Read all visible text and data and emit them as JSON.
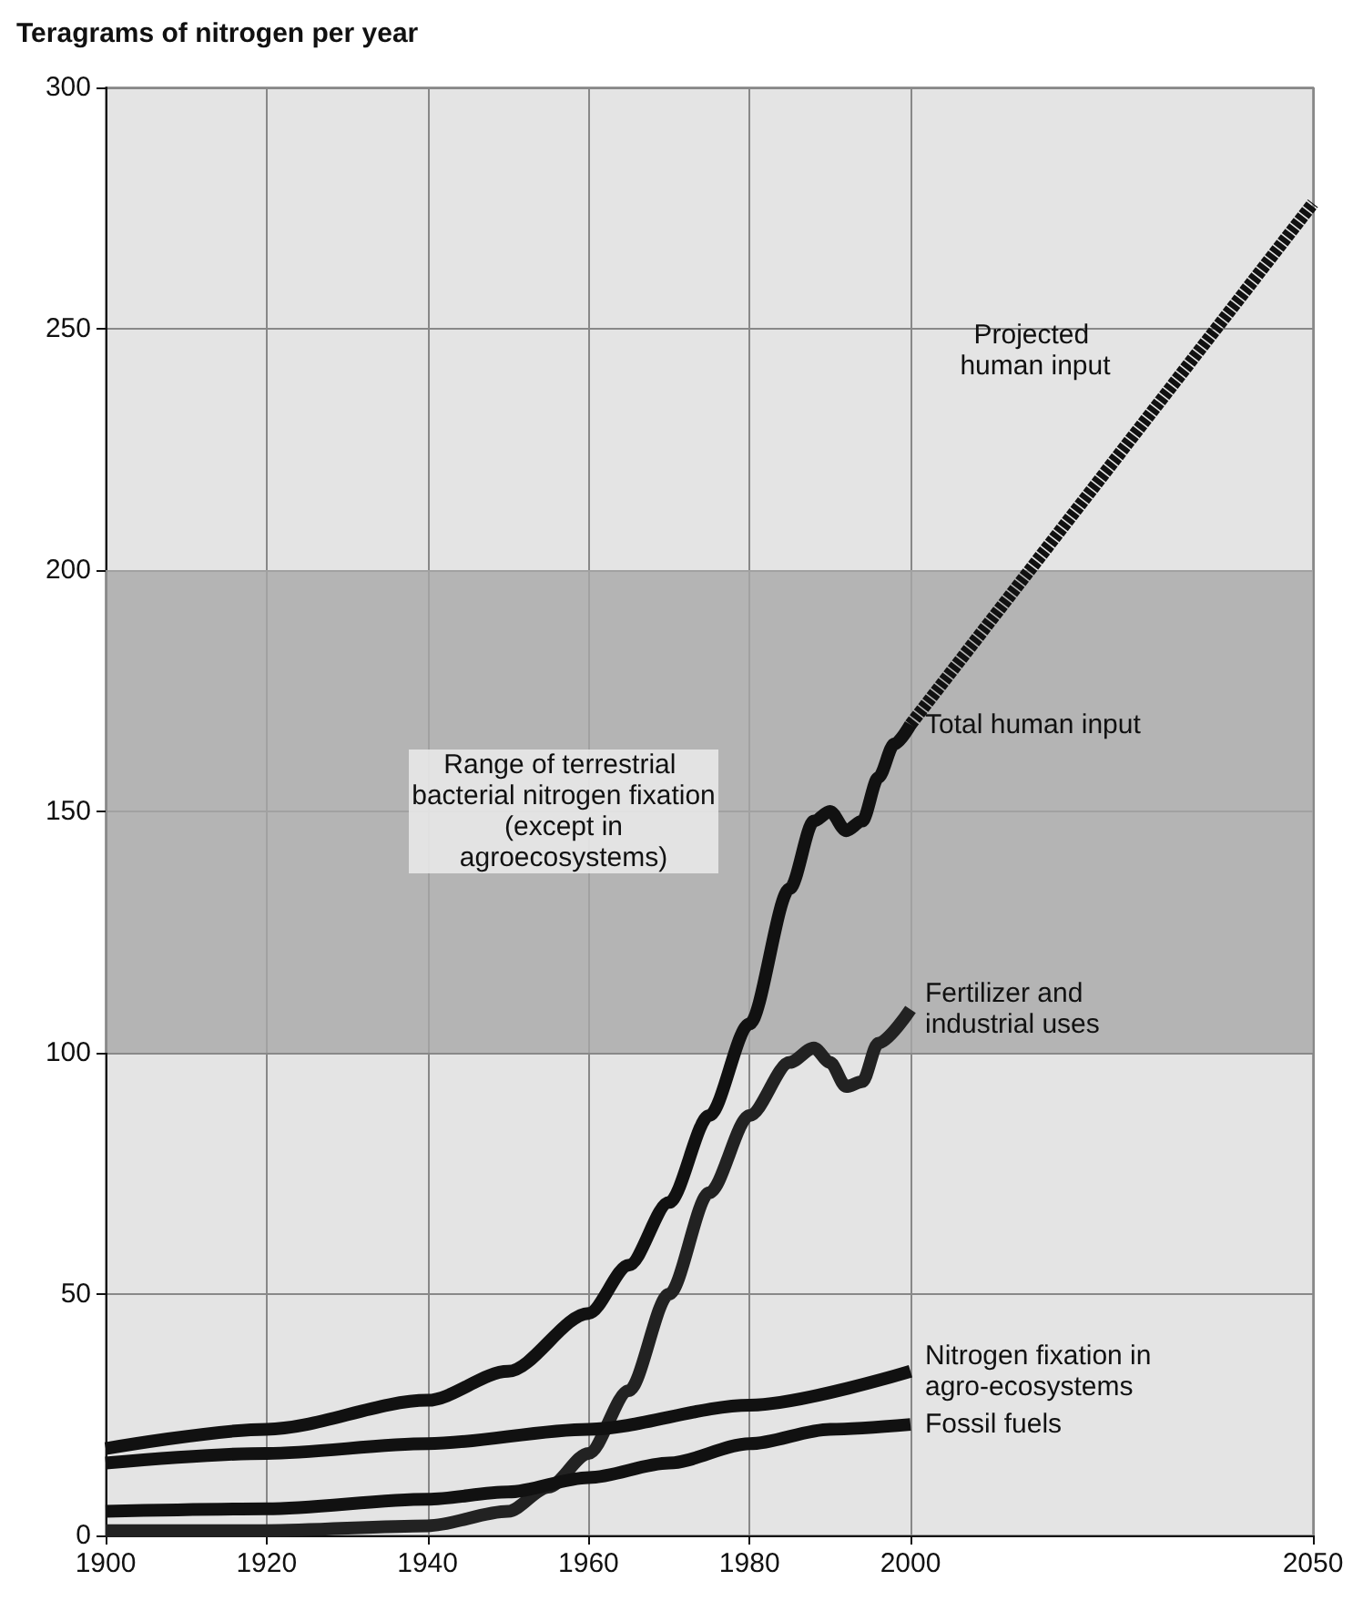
{
  "chart_data": {
    "type": "line",
    "ylabel": "Teragrams of nitrogen per year",
    "xlim": [
      1900,
      2050
    ],
    "xticks": [
      1900,
      1920,
      1940,
      1960,
      1980,
      2000,
      2050
    ],
    "ylim": [
      0,
      300
    ],
    "yticks": [
      0,
      50,
      100,
      150,
      200,
      250,
      300
    ],
    "grid": true,
    "bands": [
      {
        "axis": "y",
        "from": 100,
        "to": 200,
        "label": "Range of terrestrial bacterial nitrogen fixation (except in agroecosystems)",
        "color": "#a8a8a8"
      }
    ],
    "series": [
      {
        "name": "Total human input",
        "color": "#111111",
        "line_style": "solid",
        "x": [
          1900,
          1920,
          1940,
          1950,
          1960,
          1965,
          1970,
          1975,
          1980,
          1985,
          1988,
          1990,
          1992,
          1994,
          1996,
          1998,
          2000
        ],
        "values": [
          18,
          22,
          28,
          34,
          46,
          56,
          69,
          87,
          106,
          134,
          148,
          150,
          146,
          148,
          157,
          164,
          168
        ]
      },
      {
        "name": "Projected human input",
        "color": "#111111",
        "line_style": "dashed",
        "x": [
          2000,
          2025,
          2050
        ],
        "values": [
          168,
          222,
          276
        ]
      },
      {
        "name": "Fertilizer and industrial uses",
        "color": "#222222",
        "line_style": "solid",
        "x": [
          1900,
          1920,
          1940,
          1950,
          1955,
          1960,
          1965,
          1970,
          1975,
          1980,
          1985,
          1988,
          1990,
          1992,
          1994,
          1996,
          2000
        ],
        "values": [
          1,
          1,
          2,
          5,
          10,
          17,
          30,
          50,
          71,
          87,
          98,
          101,
          98,
          93,
          94,
          102,
          109
        ]
      },
      {
        "name": "Nitrogen fixation in agro-ecosystems",
        "color": "#111111",
        "line_style": "solid",
        "x": [
          1900,
          1920,
          1940,
          1960,
          1980,
          2000
        ],
        "values": [
          15,
          17,
          19,
          22,
          27,
          34
        ]
      },
      {
        "name": "Fossil fuels",
        "color": "#111111",
        "line_style": "solid",
        "x": [
          1900,
          1920,
          1940,
          1950,
          1960,
          1970,
          1980,
          1990,
          2000
        ],
        "values": [
          5,
          5.5,
          7.5,
          9,
          12,
          15,
          19,
          22,
          23
        ]
      }
    ]
  }
}
